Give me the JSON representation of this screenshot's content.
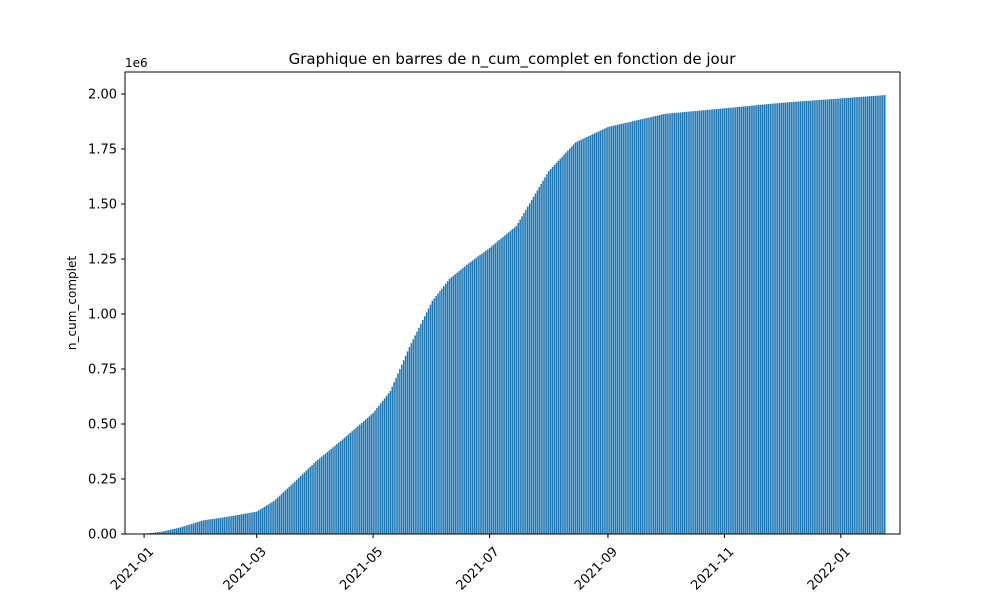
{
  "chart_data": {
    "type": "bar",
    "title": "Graphique en barres de n_cum_complet en fonction de jour",
    "xlabel": "",
    "ylabel": "n_cum_complet",
    "y_offset_label": "1e6",
    "x_start": "2020-12-27",
    "x_end": "2022-01-24",
    "x_range": [
      "2020-12-22",
      "2022-02-01"
    ],
    "ylim": [
      0,
      2.1
    ],
    "y_scale": 1000000,
    "x_ticks": [
      {
        "date": "2021-01-01",
        "label": "2021-01"
      },
      {
        "date": "2021-03-01",
        "label": "2021-03"
      },
      {
        "date": "2021-05-01",
        "label": "2021-05"
      },
      {
        "date": "2021-07-01",
        "label": "2021-07"
      },
      {
        "date": "2021-09-01",
        "label": "2021-09"
      },
      {
        "date": "2021-11-01",
        "label": "2021-11"
      },
      {
        "date": "2022-01-01",
        "label": "2022-01"
      }
    ],
    "y_ticks": [
      {
        "value": 0.0,
        "label": "0.00"
      },
      {
        "value": 0.25,
        "label": "0.25"
      },
      {
        "value": 0.5,
        "label": "0.50"
      },
      {
        "value": 0.75,
        "label": "0.75"
      },
      {
        "value": 1.0,
        "label": "1.00"
      },
      {
        "value": 1.25,
        "label": "1.25"
      },
      {
        "value": 1.5,
        "label": "1.50"
      },
      {
        "value": 1.75,
        "label": "1.75"
      },
      {
        "value": 2.0,
        "label": "2.00"
      }
    ],
    "points": [
      [
        "2020-12-27",
        0
      ],
      [
        "2021-01-01",
        1000
      ],
      [
        "2021-01-10",
        10000
      ],
      [
        "2021-01-20",
        30000
      ],
      [
        "2021-02-01",
        62000
      ],
      [
        "2021-02-15",
        80000
      ],
      [
        "2021-03-01",
        102000
      ],
      [
        "2021-03-10",
        150000
      ],
      [
        "2021-03-20",
        230000
      ],
      [
        "2021-04-01",
        330000
      ],
      [
        "2021-04-15",
        430000
      ],
      [
        "2021-05-01",
        550000
      ],
      [
        "2021-05-10",
        650000
      ],
      [
        "2021-05-20",
        850000
      ],
      [
        "2021-06-01",
        1060000
      ],
      [
        "2021-06-10",
        1160000
      ],
      [
        "2021-06-20",
        1230000
      ],
      [
        "2021-07-01",
        1300000
      ],
      [
        "2021-07-15",
        1400000
      ],
      [
        "2021-08-01",
        1650000
      ],
      [
        "2021-08-15",
        1780000
      ],
      [
        "2021-09-01",
        1850000
      ],
      [
        "2021-10-01",
        1910000
      ],
      [
        "2021-11-01",
        1935000
      ],
      [
        "2021-12-01",
        1960000
      ],
      [
        "2022-01-01",
        1980000
      ],
      [
        "2022-01-24",
        1995000
      ]
    ],
    "color": "#1f77b4",
    "grid": false,
    "legend": "none"
  }
}
